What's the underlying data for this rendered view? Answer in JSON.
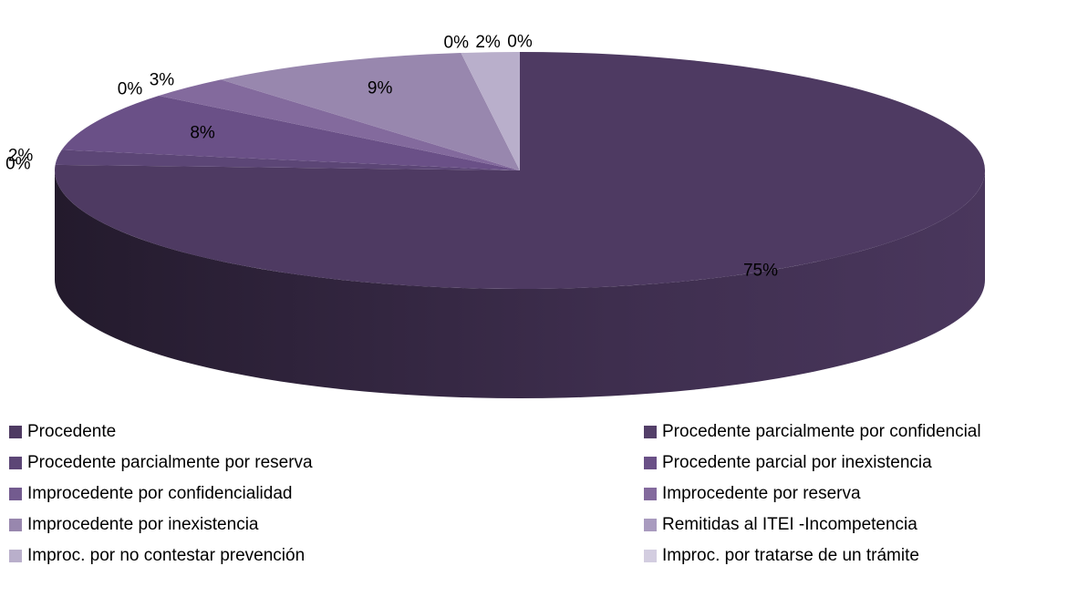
{
  "chart_data": {
    "type": "pie3d",
    "categories": [
      "Procedente",
      "Procedente parcialmente por confidencial",
      "Procedente parcialmente por reserva",
      "Procedente parcial por inexistencia",
      "Improcedente por confidencialidad",
      "Improcedente por reserva",
      "Improcedente por inexistencia",
      "Remitidas al ITEI -Incompetencia",
      "Improc. por no contestar prevención",
      "Improc. por tratarse de un trámite"
    ],
    "values": [
      75,
      0,
      2,
      8,
      0,
      3,
      9,
      0,
      2,
      0
    ],
    "value_labels": [
      "75%",
      "0%",
      "2%",
      "8%",
      "0%",
      "3%",
      "9%",
      "0%",
      "2%",
      "0%"
    ],
    "colors": [
      "#4e3a62",
      "#533f69",
      "#5c4676",
      "#6a5087",
      "#735b8f",
      "#836a9d",
      "#9887ae",
      "#a99bbf",
      "#b9afcb",
      "#d3cde0"
    ],
    "legend": "bottom"
  }
}
